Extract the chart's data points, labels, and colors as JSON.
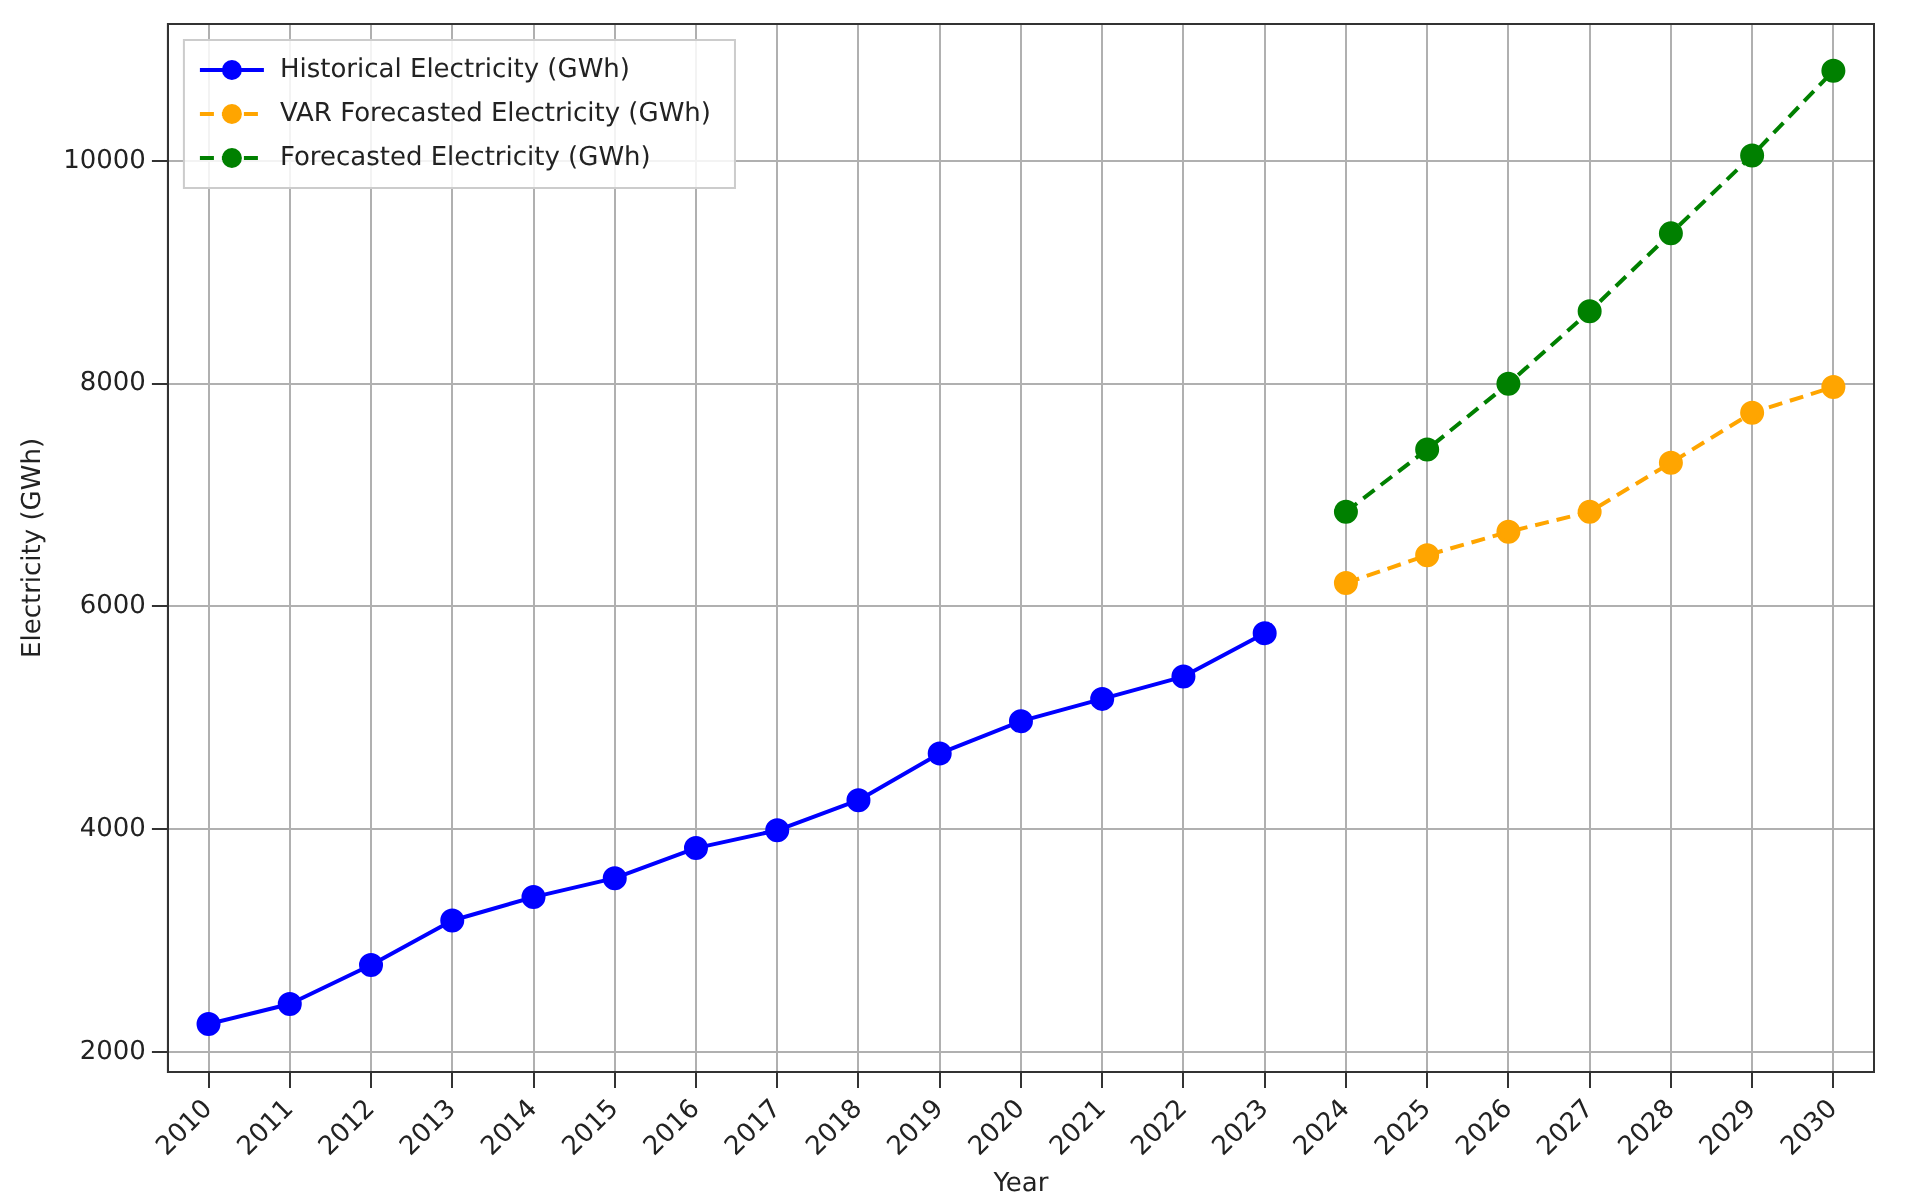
{
  "chart_data": {
    "type": "line",
    "xlabel": "Year",
    "ylabel": "Electricity (GWh)",
    "categories": [
      "2010",
      "2011",
      "2012",
      "2013",
      "2014",
      "2015",
      "2016",
      "2017",
      "2018",
      "2019",
      "2020",
      "2021",
      "2022",
      "2023",
      "2024",
      "2025",
      "2026",
      "2027",
      "2028",
      "2029",
      "2030"
    ],
    "series": [
      {
        "name": "Historical Electricity (GWh)",
        "color": "#0000ff",
        "line_style": "solid",
        "values": [
          2250,
          2430,
          2780,
          3180,
          3390,
          3560,
          3830,
          3990,
          4260,
          4680,
          4970,
          5170,
          5370,
          5760,
          null,
          null,
          null,
          null,
          null,
          null,
          null
        ]
      },
      {
        "name": "VAR Forecasted Electricity (GWh)",
        "color": "#ffa500",
        "line_style": "dashed",
        "values": [
          null,
          null,
          null,
          null,
          null,
          null,
          null,
          null,
          null,
          null,
          null,
          null,
          null,
          null,
          6210,
          6460,
          6670,
          6850,
          7290,
          7740,
          7970
        ]
      },
      {
        "name": "Forecasted Electricity (GWh)",
        "color": "#008000",
        "line_style": "dashed",
        "values": [
          null,
          null,
          null,
          null,
          null,
          null,
          null,
          null,
          null,
          null,
          null,
          null,
          null,
          null,
          6850,
          7410,
          8000,
          8650,
          9350,
          10050,
          10810
        ]
      }
    ],
    "ylim": [
      1820,
      11230
    ],
    "yticks": [
      2000,
      4000,
      6000,
      8000,
      10000
    ],
    "grid": true,
    "legend": "top left",
    "marker": "circle"
  }
}
